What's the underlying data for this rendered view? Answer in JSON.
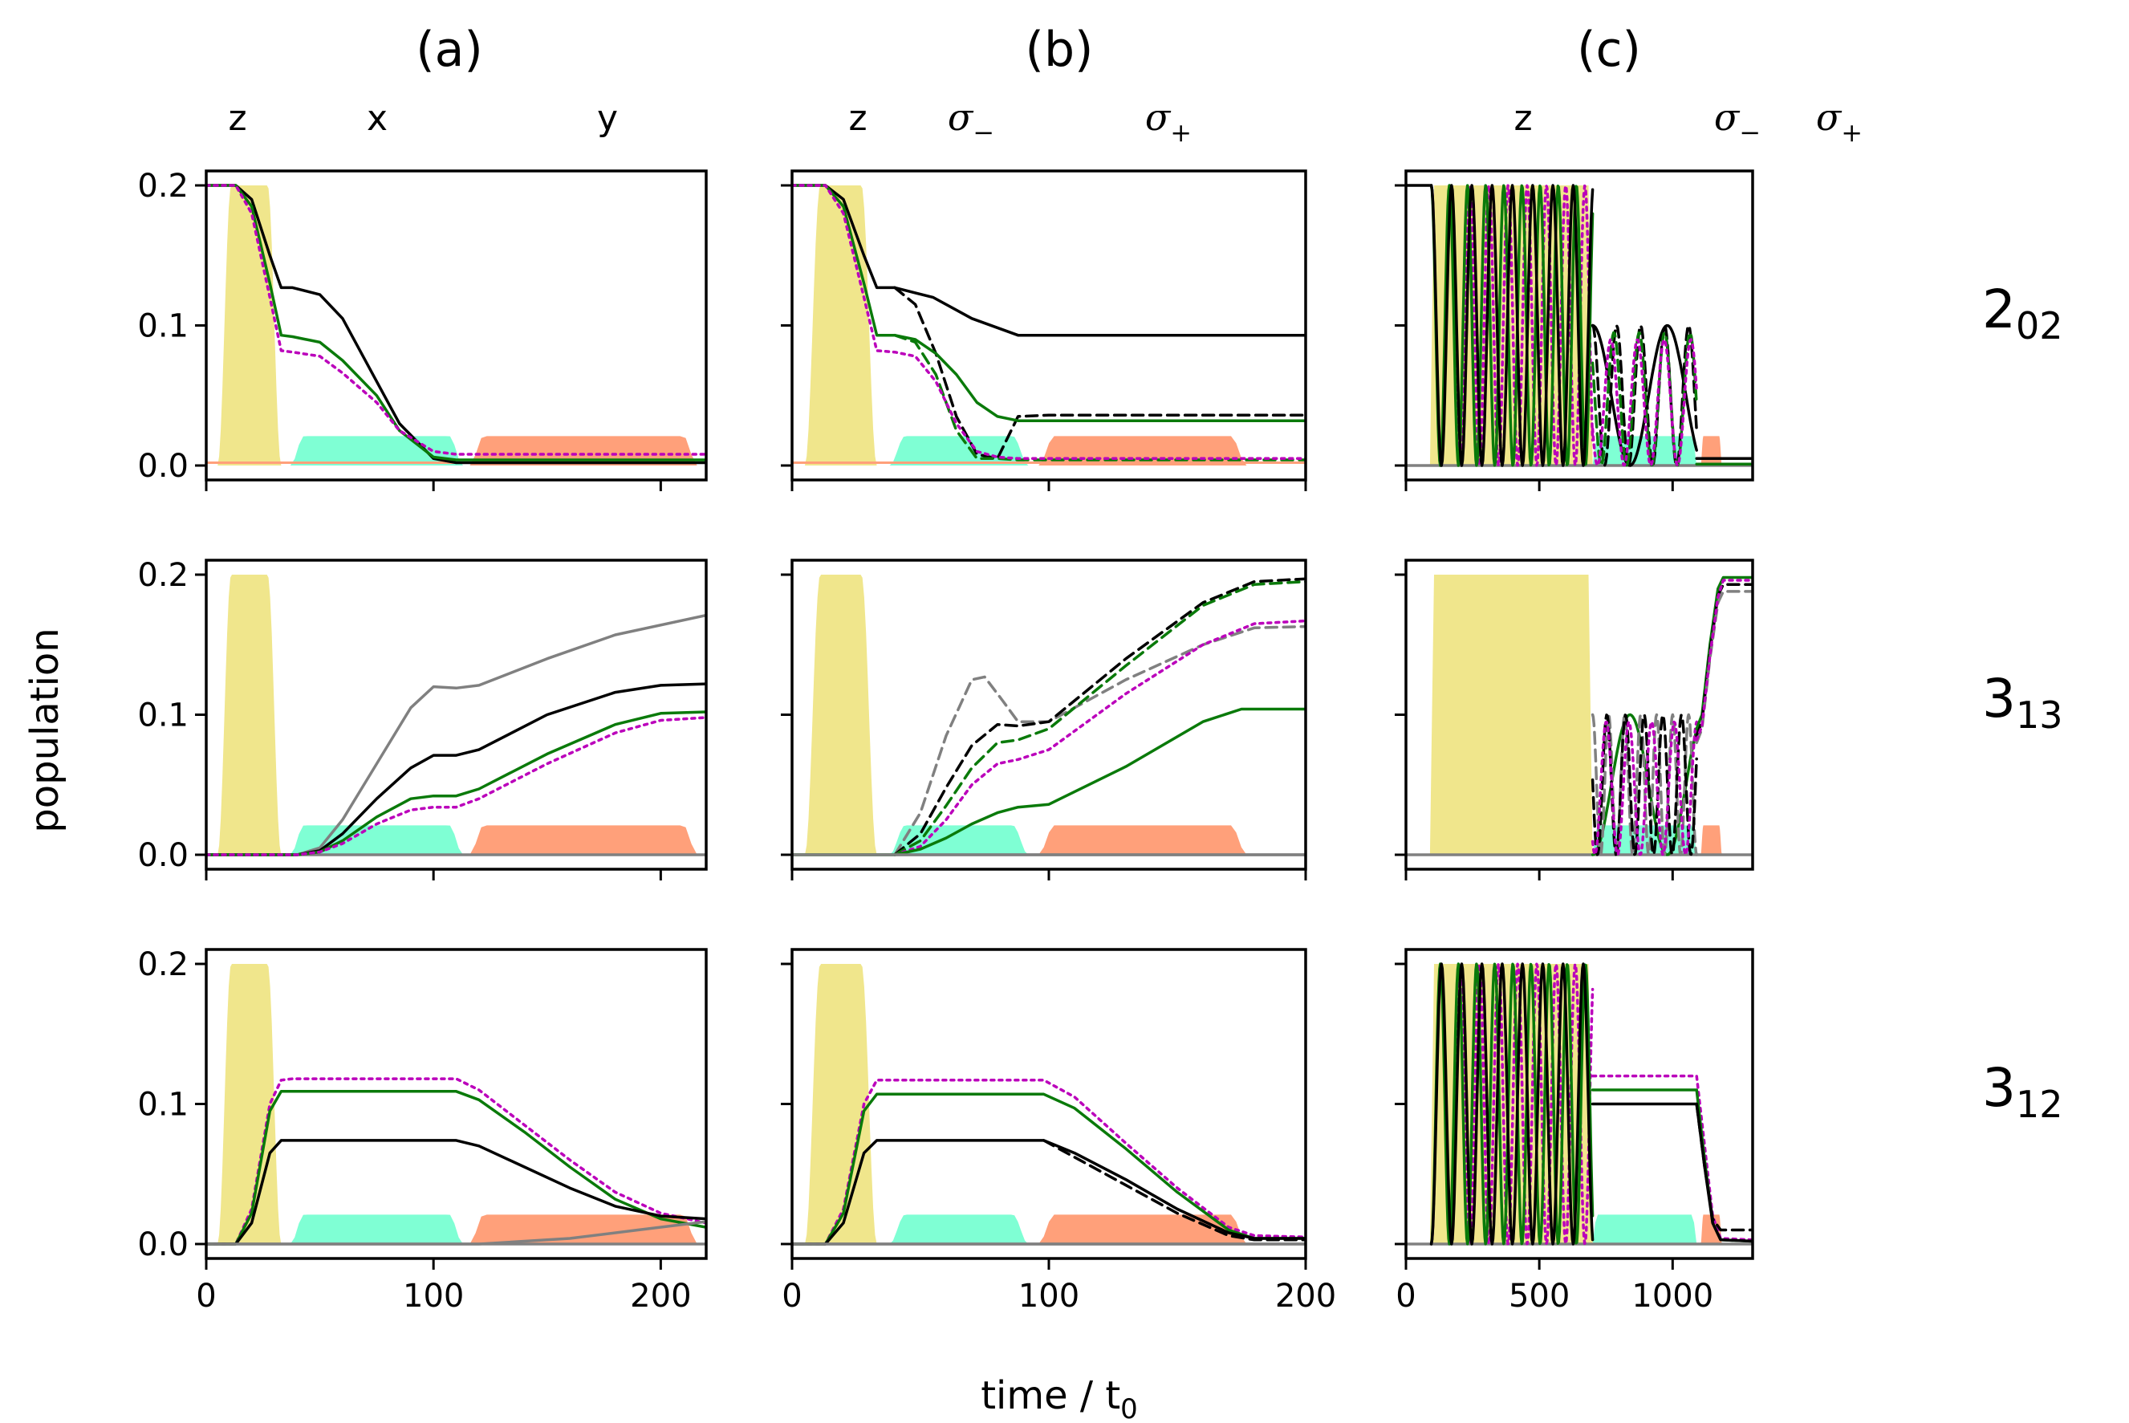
{
  "chart_data": {
    "type": "line",
    "xlabel_main": "time / t",
    "xlabel_sub": "0",
    "ylabel": "population",
    "columns": [
      {
        "title": "(a)",
        "xlim": [
          0,
          220
        ],
        "xticks": [
          "0",
          "100",
          "200"
        ],
        "xtick_values": [
          0,
          100,
          200
        ],
        "pulses": [
          {
            "label": "z",
            "at": 13
          },
          {
            "label": "x",
            "at": 75
          },
          {
            "label": "y",
            "at": 175
          }
        ]
      },
      {
        "title": "(b)",
        "xlim": [
          0,
          200
        ],
        "xticks": [
          "0",
          "100",
          "200"
        ],
        "xtick_values": [
          0,
          100,
          200
        ],
        "pulses": [
          {
            "label": "z",
            "at": 25
          },
          {
            "label": "σ",
            "sub": "−",
            "at": 78
          },
          {
            "label": "σ",
            "sub": "+",
            "at": 158
          }
        ]
      },
      {
        "title": "(c)",
        "xlim": [
          0,
          1300
        ],
        "xticks": [
          "0",
          "500",
          "1000"
        ],
        "xtick_values": [
          0,
          500,
          1000
        ],
        "pulses": [
          {
            "label": "z",
            "at": 300
          },
          {
            "label": "σ",
            "sub": "−",
            "at": 880
          },
          {
            "label": "σ",
            "sub": "+",
            "at": 1140
          }
        ]
      }
    ],
    "rows": [
      {
        "state": "2",
        "sub": "02"
      },
      {
        "state": "3",
        "sub": "13"
      },
      {
        "state": "3",
        "sub": "12"
      }
    ],
    "ylim": [
      0,
      0.2
    ],
    "yticks": [
      "0.0",
      "0.1",
      "0.2"
    ],
    "ytick_values": [
      0.0,
      0.1,
      0.2
    ],
    "colors": {
      "z_pulse": "#f0e68c",
      "x_pulse": "#7fffd4",
      "y_pulse": "#ffa07a",
      "black": "#000000",
      "green": "#0a7a0a",
      "magenta": "#bb00bb",
      "gray": "#808080"
    },
    "panels": [
      {
        "row": 0,
        "col": 0,
        "series": [
          {
            "name": "black solid",
            "color": "black",
            "style": "solid",
            "x": [
              0,
              13,
              20,
              28,
              33,
              38,
              50,
              60,
              75,
              85,
              100,
              110,
              220
            ],
            "y": [
              0.2,
              0.2,
              0.19,
              0.15,
              0.127,
              0.127,
              0.122,
              0.105,
              0.06,
              0.03,
              0.005,
              0.002,
              0.002
            ]
          },
          {
            "name": "green solid",
            "color": "green",
            "style": "solid",
            "x": [
              0,
              13,
              20,
              28,
              33,
              38,
              50,
              60,
              75,
              85,
              100,
              110,
              220
            ],
            "y": [
              0.2,
              0.2,
              0.185,
              0.13,
              0.093,
              0.092,
              0.088,
              0.075,
              0.05,
              0.025,
              0.006,
              0.004,
              0.004
            ]
          },
          {
            "name": "magenta dotted",
            "color": "magenta",
            "style": "dotted",
            "x": [
              0,
              13,
              20,
              28,
              33,
              38,
              50,
              60,
              75,
              85,
              100,
              110,
              220
            ],
            "y": [
              0.2,
              0.2,
              0.18,
              0.12,
              0.082,
              0.081,
              0.078,
              0.066,
              0.045,
              0.025,
              0.01,
              0.008,
              0.008
            ]
          }
        ]
      },
      {
        "row": 0,
        "col": 1,
        "series": [
          {
            "name": "black solid",
            "color": "black",
            "style": "solid",
            "x": [
              0,
              13,
              20,
              28,
              33,
              40,
              55,
              70,
              88,
              100,
              200
            ],
            "y": [
              0.2,
              0.2,
              0.19,
              0.15,
              0.127,
              0.127,
              0.12,
              0.105,
              0.093,
              0.093,
              0.093
            ]
          },
          {
            "name": "black dashed",
            "color": "black",
            "style": "dashed",
            "x": [
              40,
              48,
              56,
              64,
              72,
              80,
              88,
              100,
              200
            ],
            "y": [
              0.127,
              0.115,
              0.08,
              0.035,
              0.008,
              0.005,
              0.035,
              0.036,
              0.036
            ]
          },
          {
            "name": "green solid",
            "color": "green",
            "style": "solid",
            "x": [
              0,
              13,
              20,
              28,
              33,
              40,
              48,
              56,
              64,
              72,
              80,
              88,
              100,
              200
            ],
            "y": [
              0.2,
              0.2,
              0.185,
              0.13,
              0.093,
              0.093,
              0.09,
              0.08,
              0.065,
              0.045,
              0.035,
              0.032,
              0.032,
              0.032
            ]
          },
          {
            "name": "green dashed",
            "color": "green",
            "style": "dashed",
            "x": [
              40,
              48,
              56,
              64,
              72,
              80,
              88,
              100,
              200
            ],
            "y": [
              0.093,
              0.088,
              0.065,
              0.025,
              0.005,
              0.005,
              0.004,
              0.004,
              0.004
            ]
          },
          {
            "name": "magenta dotted",
            "color": "magenta",
            "style": "dotted",
            "x": [
              0,
              13,
              20,
              28,
              33,
              40,
              48,
              56,
              64,
              72,
              80,
              88,
              100,
              200
            ],
            "y": [
              0.2,
              0.2,
              0.18,
              0.12,
              0.082,
              0.081,
              0.078,
              0.06,
              0.03,
              0.01,
              0.006,
              0.005,
              0.005,
              0.005
            ]
          }
        ]
      },
      {
        "row": 1,
        "col": 0,
        "series": [
          {
            "name": "gray solid",
            "color": "gray",
            "style": "solid",
            "x": [
              0,
              40,
              50,
              60,
              75,
              90,
              100,
              110,
              120,
              150,
              180,
              220
            ],
            "y": [
              0,
              0,
              0.005,
              0.025,
              0.065,
              0.105,
              0.12,
              0.119,
              0.121,
              0.14,
              0.157,
              0.171
            ]
          },
          {
            "name": "black solid",
            "color": "black",
            "style": "solid",
            "x": [
              0,
              40,
              50,
              60,
              75,
              90,
              100,
              110,
              120,
              150,
              180,
              200,
              220
            ],
            "y": [
              0,
              0,
              0.003,
              0.015,
              0.04,
              0.062,
              0.071,
              0.071,
              0.075,
              0.1,
              0.116,
              0.121,
              0.122
            ]
          },
          {
            "name": "green solid",
            "color": "green",
            "style": "solid",
            "x": [
              0,
              40,
              50,
              60,
              75,
              90,
              100,
              110,
              120,
              150,
              180,
              200,
              220
            ],
            "y": [
              0,
              0,
              0.002,
              0.01,
              0.027,
              0.04,
              0.042,
              0.042,
              0.047,
              0.072,
              0.093,
              0.101,
              0.102
            ]
          },
          {
            "name": "magenta dotted",
            "color": "magenta",
            "style": "dotted",
            "x": [
              0,
              40,
              50,
              60,
              75,
              90,
              100,
              110,
              120,
              150,
              180,
              200,
              220
            ],
            "y": [
              0,
              0,
              0.002,
              0.008,
              0.022,
              0.032,
              0.034,
              0.034,
              0.04,
              0.065,
              0.087,
              0.096,
              0.098
            ]
          }
        ]
      },
      {
        "row": 1,
        "col": 1,
        "series": [
          {
            "name": "gray dashed",
            "color": "gray",
            "style": "dashed",
            "x": [
              40,
              50,
              60,
              70,
              75,
              82,
              88,
              100,
              130,
              160,
              180,
              200
            ],
            "y": [
              0,
              0.03,
              0.085,
              0.125,
              0.127,
              0.11,
              0.095,
              0.095,
              0.125,
              0.15,
              0.162,
              0.163
            ]
          },
          {
            "name": "black dashed",
            "color": "black",
            "style": "dashed",
            "x": [
              40,
              50,
              60,
              70,
              80,
              88,
              100,
              130,
              160,
              180,
              200
            ],
            "y": [
              0,
              0.015,
              0.048,
              0.078,
              0.093,
              0.092,
              0.095,
              0.14,
              0.18,
              0.195,
              0.197
            ]
          },
          {
            "name": "green dashed",
            "color": "green",
            "style": "dashed",
            "x": [
              40,
              50,
              60,
              70,
              80,
              88,
              100,
              130,
              160,
              180,
              200
            ],
            "y": [
              0,
              0.01,
              0.035,
              0.062,
              0.08,
              0.082,
              0.09,
              0.135,
              0.178,
              0.193,
              0.195
            ]
          },
          {
            "name": "magenta dotted",
            "color": "magenta",
            "style": "dotted",
            "x": [
              40,
              50,
              60,
              70,
              80,
              88,
              100,
              130,
              160,
              180,
              200
            ],
            "y": [
              0,
              0.006,
              0.025,
              0.05,
              0.065,
              0.068,
              0.075,
              0.115,
              0.15,
              0.165,
              0.167
            ]
          },
          {
            "name": "green solid",
            "color": "green",
            "style": "solid",
            "x": [
              0,
              40,
              50,
              60,
              70,
              80,
              88,
              100,
              130,
              160,
              175,
              200
            ],
            "y": [
              0,
              0,
              0.004,
              0.012,
              0.022,
              0.03,
              0.034,
              0.036,
              0.063,
              0.095,
              0.104,
              0.104
            ]
          },
          {
            "name": "gray solid",
            "color": "gray",
            "style": "solid",
            "x": [
              0,
              200
            ],
            "y": [
              0,
              0
            ]
          }
        ]
      },
      {
        "row": 2,
        "col": 0,
        "series": [
          {
            "name": "magenta dotted",
            "color": "magenta",
            "style": "dotted",
            "x": [
              0,
              13,
              20,
              28,
              33,
              38,
              110,
              120,
              140,
              160,
              180,
              200,
              220
            ],
            "y": [
              0,
              0,
              0.025,
              0.1,
              0.117,
              0.118,
              0.118,
              0.11,
              0.085,
              0.06,
              0.037,
              0.022,
              0.015
            ]
          },
          {
            "name": "green solid",
            "color": "green",
            "style": "solid",
            "x": [
              0,
              13,
              20,
              28,
              33,
              38,
              110,
              120,
              140,
              160,
              180,
              200,
              220
            ],
            "y": [
              0,
              0,
              0.022,
              0.095,
              0.109,
              0.109,
              0.109,
              0.103,
              0.08,
              0.055,
              0.032,
              0.018,
              0.012
            ]
          },
          {
            "name": "black solid",
            "color": "black",
            "style": "solid",
            "x": [
              0,
              13,
              20,
              28,
              33,
              38,
              110,
              120,
              140,
              160,
              180,
              200,
              220
            ],
            "y": [
              0,
              0,
              0.015,
              0.065,
              0.074,
              0.074,
              0.074,
              0.07,
              0.055,
              0.04,
              0.027,
              0.02,
              0.018
            ]
          },
          {
            "name": "gray solid",
            "color": "gray",
            "style": "solid",
            "x": [
              0,
              120,
              160,
              190,
              220
            ],
            "y": [
              0,
              0,
              0.004,
              0.01,
              0.016
            ]
          }
        ]
      },
      {
        "row": 2,
        "col": 1,
        "series": [
          {
            "name": "magenta dotted",
            "color": "magenta",
            "style": "dotted",
            "x": [
              0,
              13,
              20,
              28,
              33,
              38,
              98,
              110,
              130,
              150,
              170,
              180,
              200
            ],
            "y": [
              0,
              0,
              0.025,
              0.1,
              0.117,
              0.117,
              0.117,
              0.105,
              0.072,
              0.04,
              0.012,
              0.006,
              0.005
            ]
          },
          {
            "name": "green solid",
            "color": "green",
            "style": "solid",
            "x": [
              0,
              13,
              20,
              28,
              33,
              38,
              98,
              110,
              130,
              150,
              170,
              180,
              200
            ],
            "y": [
              0,
              0,
              0.022,
              0.095,
              0.107,
              0.107,
              0.107,
              0.097,
              0.068,
              0.037,
              0.01,
              0.004,
              0.004
            ]
          },
          {
            "name": "black solid",
            "color": "black",
            "style": "solid",
            "x": [
              0,
              13,
              20,
              28,
              33,
              38,
              98,
              110,
              130,
              150,
              170,
              180,
              200
            ],
            "y": [
              0,
              0,
              0.015,
              0.065,
              0.074,
              0.074,
              0.074,
              0.065,
              0.046,
              0.025,
              0.008,
              0.004,
              0.004
            ]
          },
          {
            "name": "black dashed",
            "color": "black",
            "style": "dashed",
            "x": [
              98,
              110,
              130,
              150,
              170,
              180,
              200
            ],
            "y": [
              0.074,
              0.062,
              0.042,
              0.022,
              0.006,
              0.003,
              0.003
            ]
          },
          {
            "name": "gray solid",
            "color": "gray",
            "style": "solid",
            "x": [
              0,
              200
            ],
            "y": [
              0,
              0
            ]
          }
        ]
      },
      {
        "row": 0,
        "col": 2,
        "note": "fast Rabi oscillations during z pulse, then sigma-minus oscillations, final plateau ~0.005",
        "series": []
      },
      {
        "row": 1,
        "col": 2,
        "note": "flat zero during z pulse, oscillations up to 0.1 during sigma-minus, rises to ~0.195 after sigma-plus",
        "series": []
      },
      {
        "row": 2,
        "col": 2,
        "note": "fast oscillations during z pulse, plateaus ~0.12/0.11/0.10, drop to ~0.003 after sigma-plus",
        "series": []
      }
    ]
  }
}
